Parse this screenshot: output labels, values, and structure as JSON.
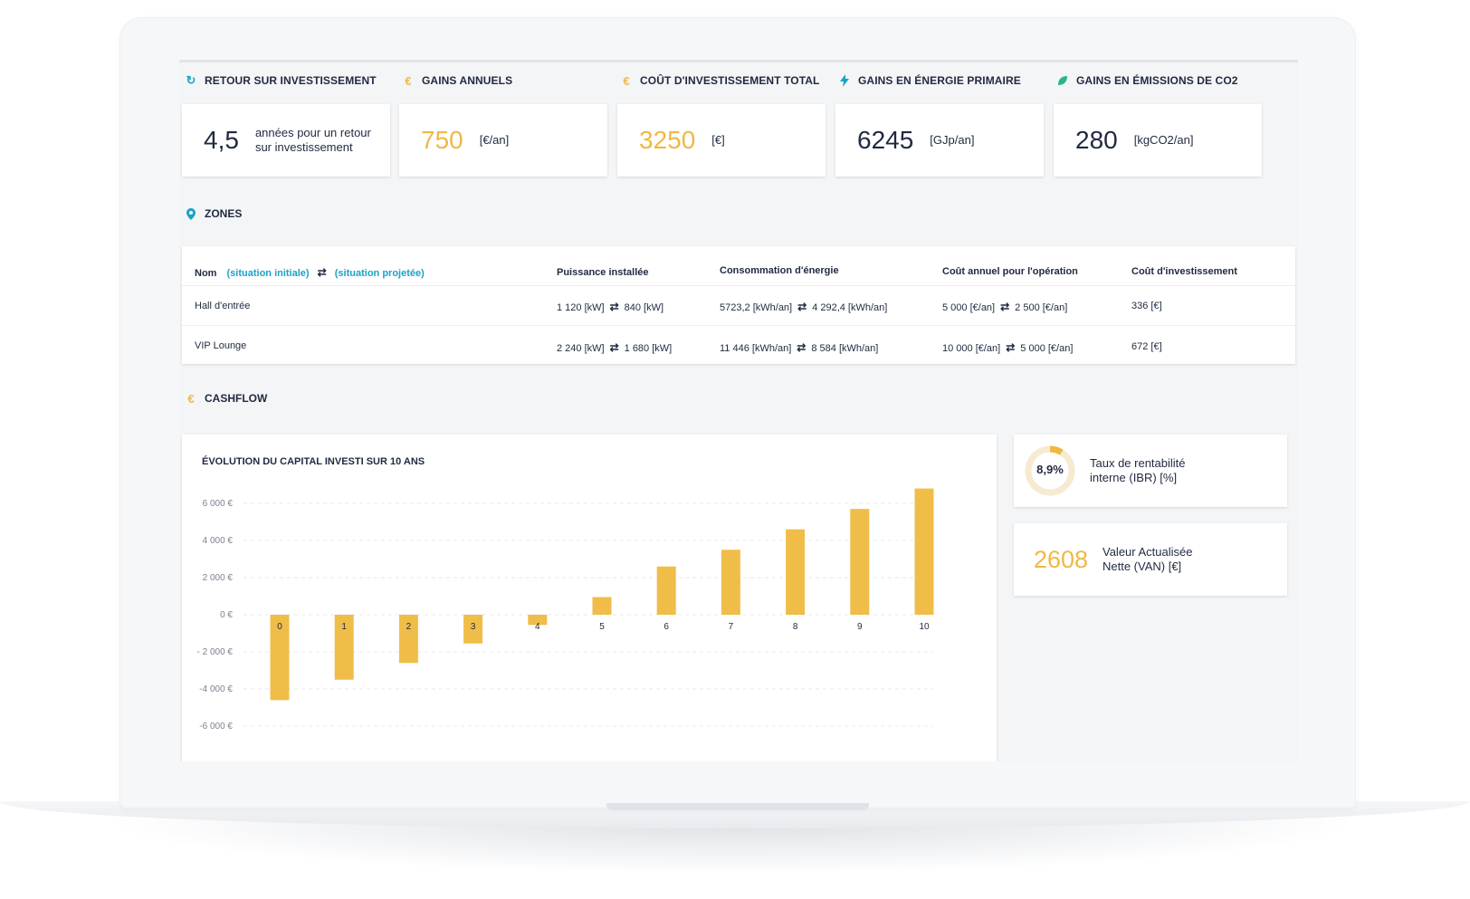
{
  "kpis": [
    {
      "label": "RETOUR SUR INVESTISSEMENT",
      "value": "4,5",
      "unit": "années pour un retour sur investissement",
      "icon": "refresh-icon",
      "icon_color": "#1aa3c7",
      "value_color": "#1f2940"
    },
    {
      "label": "GAINS ANNUELS",
      "value": "750",
      "unit": "[€/an]",
      "icon": "euro-icon",
      "icon_color": "#f0b843",
      "value_color": "#f0b843"
    },
    {
      "label": "COÛT D'INVESTISSEMENT TOTAL",
      "value": "3250",
      "unit": "[€]",
      "icon": "euro-icon",
      "icon_color": "#f0b843",
      "value_color": "#f0b843"
    },
    {
      "label": "GAINS EN ÉNERGIE PRIMAIRE",
      "value": "6245",
      "unit": "[GJp/an]",
      "icon": "lightning-icon",
      "icon_color": "#1aa3c7",
      "value_color": "#1f2940"
    },
    {
      "label": "GAINS EN ÉMISSIONS DE CO2",
      "value": "280",
      "unit": "[kgCO2/an]",
      "icon": "leaf-icon",
      "icon_color": "#2bb585",
      "value_color": "#1f2940"
    }
  ],
  "zones": {
    "title": "ZONES",
    "headers": {
      "nom": "Nom",
      "initial": "(situation initiale)",
      "projected": "(situation projetée)",
      "power": "Puissance installée",
      "consumption": "Consommation d'énergie",
      "annual_cost": "Coût annuel pour l'opération",
      "investment": "Coût d'investissement"
    },
    "rows": [
      {
        "name": "Hall d'entrée",
        "power_a": "1 120 [kW]",
        "power_b": "840 [kW]",
        "cons_a": "5723,2 [kWh/an]",
        "cons_b": "4 292,4 [kWh/an]",
        "cost_a": "5 000 [€/an]",
        "cost_b": "2 500 [€/an]",
        "invest": "336 [€]"
      },
      {
        "name": "VIP Lounge",
        "power_a": "2 240 [kW]",
        "power_b": "1 680 [kW]",
        "cons_a": "11 446 [kWh/an]",
        "cons_b": "8 584 [kWh/an]",
        "cost_a": "10 000 [€/an]",
        "cost_b": "5 000 [€/an]",
        "invest": "672 [€]"
      }
    ]
  },
  "cashflow": {
    "title": "CASHFLOW",
    "chart_title": "ÉVOLUTION DU CAPITAL INVESTI SUR 10 ANS",
    "irr_value": "8,9%",
    "irr_fraction": 0.089,
    "irr_label": "Taux de rentabilité interne (IBR) [%]",
    "npv_value": "2608",
    "npv_label": "Valeur Actualisée Nette (VAN) [€]"
  },
  "chart_data": {
    "type": "bar",
    "title": "ÉVOLUTION DU CAPITAL INVESTI SUR 10 ANS",
    "categories": [
      "0",
      "1",
      "2",
      "3",
      "4",
      "5",
      "6",
      "7",
      "8",
      "9",
      "10"
    ],
    "values": [
      -4600,
      -3500,
      -2600,
      -1550,
      -550,
      950,
      2600,
      3500,
      4600,
      5700,
      6800
    ],
    "ylim": [
      -6000,
      6000
    ],
    "yticks": [
      6000,
      4000,
      2000,
      0,
      -2000,
      -4000,
      -6000
    ],
    "ytick_labels": [
      "6 000 €",
      "4 000 €",
      "2 000 €",
      "0 €",
      "- 2 000 €",
      "-4 000 €",
      "-6 000 €"
    ],
    "bar_color": "#f0bd48",
    "grid": true
  }
}
